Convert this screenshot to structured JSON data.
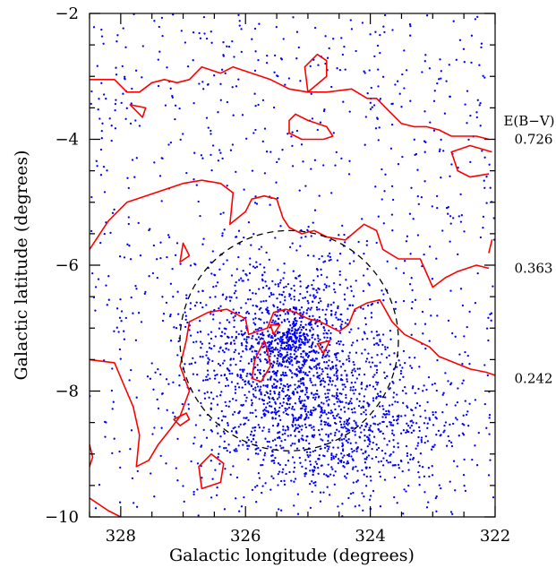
{
  "chart_data": {
    "type": "scatter",
    "title": "",
    "xlabel": "Galactic longitude (degrees)",
    "ylabel": "Galactic latitude (degrees)",
    "xlim": [
      328.5,
      322
    ],
    "ylim": [
      -10,
      -2
    ],
    "x_reversed": true,
    "x_ticks": [
      328,
      326,
      324,
      322
    ],
    "y_ticks": [
      -2,
      -4,
      -6,
      -8,
      -10
    ],
    "grid": false,
    "legend": "none",
    "point_color": "#0000ff",
    "contour_color": "#ff0000",
    "circle": {
      "center_l": 325.3,
      "center_b": -7.2,
      "radius_deg": 1.75,
      "style": "dashed"
    },
    "contour_legend": {
      "title": "E(B−V)",
      "levels": [
        {
          "value": "0.726",
          "b": -4.0
        },
        {
          "value": "0.363",
          "b": -6.05
        },
        {
          "value": "0.242",
          "b": -7.8
        }
      ]
    },
    "contours": [
      {
        "name": "0.726-top",
        "points": [
          [
            328.5,
            -3.05
          ],
          [
            328.1,
            -3.05
          ],
          [
            327.9,
            -3.25
          ],
          [
            327.7,
            -3.25
          ],
          [
            327.5,
            -3.1
          ],
          [
            327.3,
            -3.05
          ],
          [
            327.1,
            -3.1
          ],
          [
            326.9,
            -3.05
          ],
          [
            326.7,
            -2.85
          ],
          [
            326.4,
            -2.95
          ],
          [
            326.2,
            -2.85
          ],
          [
            325.9,
            -2.95
          ],
          [
            325.6,
            -3.05
          ],
          [
            325.3,
            -3.2
          ],
          [
            325.0,
            -3.25
          ],
          [
            324.7,
            -3.25
          ],
          [
            324.3,
            -3.2
          ],
          [
            324.05,
            -3.35
          ],
          [
            323.9,
            -3.35
          ],
          [
            323.7,
            -3.55
          ],
          [
            323.5,
            -3.75
          ],
          [
            323.3,
            -3.8
          ],
          [
            323.1,
            -3.8
          ],
          [
            322.9,
            -3.85
          ],
          [
            322.7,
            -3.95
          ],
          [
            322.5,
            -3.95
          ],
          [
            322.3,
            -3.95
          ],
          [
            322.1,
            -4.0
          ]
        ]
      },
      {
        "name": "0.726-island-1",
        "points": [
          [
            327.85,
            -3.45
          ],
          [
            327.6,
            -3.5
          ],
          [
            327.65,
            -3.65
          ],
          [
            327.85,
            -3.45
          ]
        ],
        "closed": true
      },
      {
        "name": "0.726-island-2",
        "points": [
          [
            325.0,
            -3.25
          ],
          [
            324.7,
            -3.0
          ],
          [
            324.7,
            -2.75
          ],
          [
            324.85,
            -2.65
          ],
          [
            325.05,
            -2.85
          ],
          [
            325.0,
            -3.25
          ]
        ],
        "closed": true
      },
      {
        "name": "0.726-island-3",
        "points": [
          [
            325.2,
            -3.6
          ],
          [
            325.0,
            -3.7
          ],
          [
            324.7,
            -3.8
          ],
          [
            324.6,
            -3.95
          ],
          [
            324.75,
            -4.0
          ],
          [
            325.1,
            -4.0
          ],
          [
            325.3,
            -3.9
          ],
          [
            325.3,
            -3.7
          ],
          [
            325.2,
            -3.6
          ]
        ],
        "closed": true
      },
      {
        "name": "0.726-island-4",
        "points": [
          [
            322.05,
            -4.2
          ],
          [
            322.4,
            -4.1
          ],
          [
            322.7,
            -4.2
          ],
          [
            322.6,
            -4.5
          ],
          [
            322.4,
            -4.6
          ],
          [
            322.1,
            -4.55
          ]
        ]
      },
      {
        "name": "0.363",
        "points": [
          [
            328.5,
            -5.75
          ],
          [
            328.2,
            -5.3
          ],
          [
            327.9,
            -5.0
          ],
          [
            327.6,
            -4.9
          ],
          [
            327.3,
            -4.8
          ],
          [
            327.0,
            -4.7
          ],
          [
            326.7,
            -4.65
          ],
          [
            326.4,
            -4.7
          ],
          [
            326.2,
            -4.85
          ],
          [
            326.25,
            -5.35
          ],
          [
            326.0,
            -5.15
          ],
          [
            325.9,
            -4.95
          ],
          [
            325.7,
            -4.9
          ],
          [
            325.5,
            -4.95
          ],
          [
            325.4,
            -5.25
          ],
          [
            325.3,
            -5.4
          ],
          [
            325.1,
            -5.5
          ],
          [
            324.9,
            -5.45
          ],
          [
            324.7,
            -5.55
          ],
          [
            324.4,
            -5.6
          ],
          [
            324.1,
            -5.35
          ],
          [
            323.9,
            -5.45
          ],
          [
            323.8,
            -5.75
          ],
          [
            323.55,
            -5.9
          ],
          [
            323.2,
            -5.9
          ],
          [
            323.0,
            -6.35
          ],
          [
            322.8,
            -6.2
          ],
          [
            322.6,
            -6.1
          ],
          [
            322.3,
            -6.0
          ],
          [
            322.1,
            -6.05
          ]
        ]
      },
      {
        "name": "0.363-island",
        "points": [
          [
            327.0,
            -5.65
          ],
          [
            326.9,
            -5.85
          ],
          [
            327.05,
            -5.95
          ],
          [
            327.0,
            -5.65
          ]
        ],
        "closed": true
      },
      {
        "name": "0.363-island-2",
        "points": [
          [
            322.1,
            -5.8
          ],
          [
            322.05,
            -5.6
          ],
          [
            322.1,
            -5.8
          ]
        ],
        "closed": true
      },
      {
        "name": "0.242",
        "points": [
          [
            328.5,
            -7.5
          ],
          [
            328.1,
            -7.55
          ],
          [
            327.95,
            -7.9
          ],
          [
            327.8,
            -8.25
          ],
          [
            327.7,
            -8.7
          ],
          [
            327.75,
            -9.2
          ],
          [
            327.55,
            -9.1
          ],
          [
            327.4,
            -8.85
          ],
          [
            327.2,
            -8.6
          ],
          [
            327.05,
            -8.4
          ],
          [
            326.9,
            -8.0
          ],
          [
            327.05,
            -7.6
          ],
          [
            326.95,
            -7.2
          ],
          [
            326.9,
            -6.9
          ],
          [
            326.6,
            -6.75
          ],
          [
            326.3,
            -6.7
          ],
          [
            326.0,
            -6.85
          ],
          [
            325.95,
            -7.1
          ],
          [
            325.65,
            -7.0
          ],
          [
            325.55,
            -6.75
          ],
          [
            325.35,
            -6.7
          ],
          [
            325.2,
            -6.75
          ],
          [
            325.0,
            -6.85
          ],
          [
            324.8,
            -6.9
          ],
          [
            324.6,
            -7.0
          ],
          [
            324.5,
            -7.05
          ],
          [
            324.35,
            -6.95
          ],
          [
            324.25,
            -6.7
          ],
          [
            324.05,
            -6.6
          ],
          [
            323.85,
            -6.55
          ],
          [
            323.65,
            -6.9
          ],
          [
            323.45,
            -7.1
          ],
          [
            323.25,
            -7.2
          ],
          [
            323.05,
            -7.3
          ],
          [
            322.9,
            -7.45
          ],
          [
            322.65,
            -7.55
          ],
          [
            322.4,
            -7.65
          ],
          [
            322.15,
            -7.7
          ],
          [
            322.0,
            -7.75
          ]
        ]
      },
      {
        "name": "0.242-island-1",
        "points": [
          [
            325.7,
            -7.2
          ],
          [
            325.85,
            -7.5
          ],
          [
            325.9,
            -7.8
          ],
          [
            325.75,
            -7.85
          ],
          [
            325.6,
            -7.6
          ],
          [
            325.65,
            -7.35
          ],
          [
            325.7,
            -7.2
          ]
        ],
        "closed": true
      },
      {
        "name": "0.242-island-2",
        "points": [
          [
            326.95,
            -8.35
          ],
          [
            327.15,
            -8.45
          ],
          [
            327.05,
            -8.55
          ],
          [
            326.9,
            -8.45
          ],
          [
            326.95,
            -8.35
          ]
        ],
        "closed": true
      },
      {
        "name": "0.242-island-3",
        "points": [
          [
            326.55,
            -9.0
          ],
          [
            326.75,
            -9.2
          ],
          [
            326.7,
            -9.55
          ],
          [
            326.4,
            -9.45
          ],
          [
            326.35,
            -9.15
          ],
          [
            326.55,
            -9.0
          ]
        ],
        "closed": true
      },
      {
        "name": "0.242-island-4",
        "points": [
          [
            324.65,
            -7.2
          ],
          [
            324.75,
            -7.4
          ],
          [
            324.85,
            -7.25
          ],
          [
            324.65,
            -7.2
          ]
        ],
        "closed": true
      },
      {
        "name": "0.242-island-5",
        "points": [
          [
            325.45,
            -6.95
          ],
          [
            325.55,
            -7.1
          ],
          [
            325.6,
            -6.95
          ],
          [
            325.45,
            -6.95
          ]
        ],
        "closed": true
      },
      {
        "name": "0.242-bottom-left",
        "points": [
          [
            328.5,
            -9.7
          ],
          [
            328.2,
            -9.9
          ],
          [
            328.0,
            -10.0
          ]
        ]
      },
      {
        "name": "0.242-left-edge",
        "points": [
          [
            328.5,
            -8.85
          ],
          [
            328.45,
            -9.05
          ],
          [
            328.5,
            -9.2
          ]
        ]
      }
    ],
    "points": {
      "description_free": true,
      "field": {
        "n": 900,
        "l_range": [
          328.5,
          322.0
        ],
        "b_range": [
          -10.0,
          -2.0
        ]
      },
      "cluster": {
        "n": 1300,
        "center_l": 325.3,
        "center_b": -7.5,
        "sigma_l": 0.75,
        "sigma_b": 0.75
      },
      "core": {
        "n": 160,
        "center_l": 325.3,
        "center_b": -7.2,
        "sigma_l": 0.2,
        "sigma_b": 0.2
      },
      "southeast_group": {
        "n": 700,
        "center_l": 324.3,
        "center_b": -8.6,
        "sigma_l": 0.9,
        "sigma_b": 0.55
      }
    }
  }
}
